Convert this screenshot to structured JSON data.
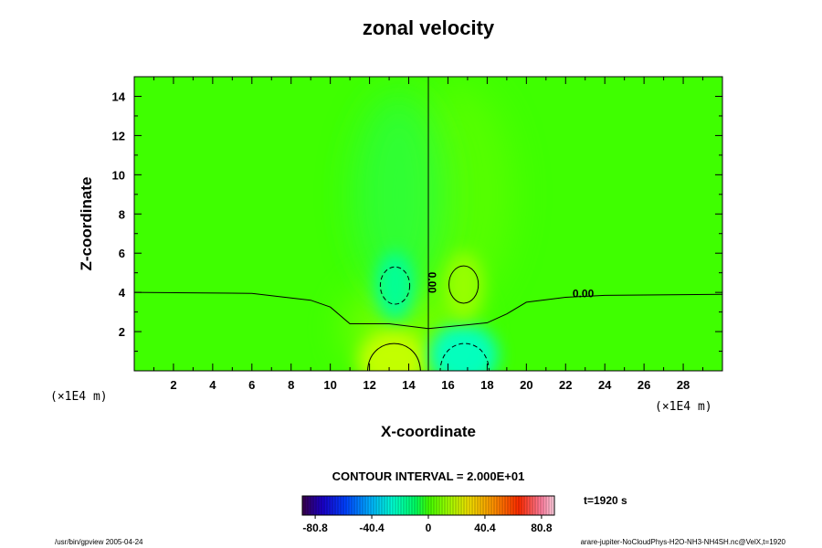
{
  "chart_data": {
    "type": "heatmap",
    "title": "zonal velocity",
    "xlabel": "X-coordinate",
    "ylabel": "Z-coordinate",
    "x_unit": "(×1E4 m)",
    "z_unit": "(×1E4 m)",
    "xlim": [
      0,
      30
    ],
    "ylim": [
      0,
      15
    ],
    "x_ticks": [
      2,
      4,
      6,
      8,
      10,
      12,
      14,
      16,
      18,
      20,
      22,
      24,
      26,
      28
    ],
    "y_ticks": [
      2,
      4,
      6,
      8,
      10,
      12,
      14
    ],
    "contour_interval_text": "CONTOUR INTERVAL = 2.000E+01",
    "time_text": "t=1920 s",
    "colorbar": {
      "range": [
        -90,
        90
      ],
      "tick_values": [
        -80.8,
        -40.4,
        0,
        40.4,
        80.8
      ],
      "tick_labels": [
        "-80.8",
        "-40.4",
        "0",
        "40.4",
        "80.8"
      ]
    },
    "zero_contour_labels": [
      "0.00",
      "0.00"
    ],
    "zero_contour_points": [
      [
        0,
        4.0
      ],
      [
        6,
        3.95
      ],
      [
        9,
        3.6
      ],
      [
        10,
        3.25
      ],
      [
        11,
        2.4
      ],
      [
        13,
        2.4
      ],
      [
        15,
        2.15
      ],
      [
        17,
        2.35
      ],
      [
        18,
        2.45
      ],
      [
        19,
        2.9
      ],
      [
        20,
        3.5
      ],
      [
        22,
        3.75
      ],
      [
        24,
        3.85
      ],
      [
        30,
        3.9
      ]
    ],
    "features": [
      {
        "kind": "positive-core",
        "x": 13.2,
        "z": 0.5,
        "value": 30
      },
      {
        "kind": "negative-core",
        "x": 16.8,
        "z": 0.8,
        "value": -30
      },
      {
        "kind": "negative-upper",
        "x": 13.3,
        "z": 4.3,
        "value": -22
      },
      {
        "kind": "positive-upper",
        "x": 16.8,
        "z": 4.3,
        "value": 20
      }
    ]
  },
  "footer": {
    "left": "/usr/bin/gpview 2005-04-24",
    "right": "arare-jupiter-NoCloudPhys-H2O-NH3-NH4SH.nc@VelX,t=1920"
  },
  "colors": {
    "background_field": "#3fff00",
    "contour": "#000000"
  }
}
